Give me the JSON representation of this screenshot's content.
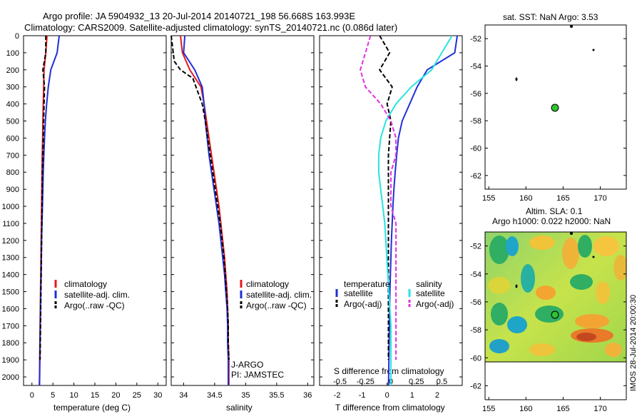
{
  "title": {
    "line1": "Argo profile: JA 5904932_13 20-Jul-2014 20140721_198 56.668S 163.993E",
    "line2": "Climatology: CARS2009. Satellite-adjusted climatology: synTS_20140721.nc (0.086d later)"
  },
  "panels": {
    "temperature": {
      "xlabel": "temperature (deg C)",
      "xticks": [
        "0",
        "5",
        "10",
        "15",
        "20",
        "25",
        "30"
      ],
      "legend": [
        "climatology",
        "satellite-adj. clim.",
        "Argo(..raw -QC)"
      ]
    },
    "salinity": {
      "xlabel": "salinity",
      "xticks": [
        "34",
        "34.5",
        "35",
        "35.5",
        "36"
      ],
      "legend": [
        "climatology",
        "satellite-adj. clim.",
        "Argo(..raw -QC)"
      ],
      "note1": "J-ARGO",
      "note2": "PI: JAMSTEC"
    },
    "difference": {
      "xlabel": "T difference from climatology",
      "s_label": "S difference from climatology",
      "xticks": [
        "-2",
        "-1",
        "0",
        "1",
        "2"
      ],
      "sticks": [
        "-0.5",
        "-0.25",
        "0",
        "0.25",
        "0.5"
      ],
      "leg_t_head": "temperature",
      "leg_s_head": "salinity",
      "leg_t": [
        "satellite",
        "Argo(-adj)"
      ],
      "leg_s": [
        "satellite",
        "Argo(-adj)"
      ]
    }
  },
  "depth_ticks": [
    "0",
    "100",
    "200",
    "300",
    "400",
    "500",
    "600",
    "700",
    "800",
    "900",
    "1000",
    "1100",
    "1200",
    "1300",
    "1400",
    "1500",
    "1600",
    "1700",
    "1800",
    "1900",
    "2000"
  ],
  "map1": {
    "title": "sat. SST: NaN Argo: 3.53",
    "yticks": [
      "-52",
      "-54",
      "-56",
      "-58",
      "-60",
      "-62"
    ],
    "xticks": [
      "155",
      "160",
      "165",
      "170"
    ]
  },
  "map2": {
    "title1": "Altim. SLA: 0.1",
    "title2": "Argo h1000: 0.022 h2000: NaN",
    "yticks": [
      "-52",
      "-54",
      "-56",
      "-58",
      "-60",
      "-62"
    ],
    "xticks": [
      "155",
      "160",
      "165",
      "170"
    ],
    "stamp": "IMOS 28-Jul-2014 20:00:30"
  },
  "colors": {
    "climatology": "#e41a1c",
    "satellite": "#1f2fd6",
    "argo": "#000000",
    "sat_salinity": "#27e3e3",
    "argo_salinity_diff": "#e12fe1",
    "float_marker": "#2ec42e"
  },
  "chart_data": [
    {
      "type": "line",
      "panel": "temperature",
      "xlabel": "temperature (deg C)",
      "ylabel": "",
      "xlim": [
        -2,
        32
      ],
      "ylim": [
        2050,
        0
      ],
      "series": [
        {
          "name": "climatology",
          "x": [
            3.6,
            3.3,
            2.9,
            2.8,
            2.7,
            2.6,
            2.55,
            2.45,
            2.4,
            2.35,
            2.3,
            2.25,
            2.2,
            2.15,
            2.1,
            2.05,
            2.0,
            1.95,
            1.9,
            1.85,
            1.8,
            1.75
          ],
          "y": [
            0,
            100,
            200,
            300,
            400,
            500,
            600,
            700,
            800,
            900,
            1000,
            1100,
            1200,
            1300,
            1400,
            1500,
            1600,
            1700,
            1800,
            1900,
            2000,
            2050
          ]
        },
        {
          "name": "satellite-adj. clim.",
          "x": [
            6.5,
            6.0,
            4.5,
            3.9,
            3.5,
            3.2,
            3.0,
            2.85,
            2.7,
            2.6,
            2.5,
            2.4,
            2.3,
            2.25,
            2.2,
            2.1,
            2.05,
            2.0,
            1.95,
            1.9,
            1.85,
            1.8
          ],
          "y": [
            0,
            100,
            200,
            300,
            400,
            500,
            600,
            700,
            800,
            900,
            1000,
            1100,
            1200,
            1300,
            1400,
            1500,
            1600,
            1700,
            1800,
            1900,
            2000,
            2050
          ]
        },
        {
          "name": "Argo(..raw -QC)",
          "x": [
            3.3,
            3.3,
            2.6,
            3.0,
            2.9,
            2.8,
            2.7,
            2.6,
            2.5,
            2.45,
            2.4,
            2.35,
            2.3,
            2.25,
            2.2,
            2.15,
            2.1,
            2.05,
            2.0,
            1.95
          ],
          "y": [
            0,
            100,
            200,
            300,
            400,
            500,
            600,
            700,
            800,
            900,
            1000,
            1100,
            1200,
            1300,
            1400,
            1500,
            1600,
            1700,
            1800,
            1900
          ]
        }
      ]
    },
    {
      "type": "line",
      "panel": "salinity",
      "xlabel": "salinity",
      "ylabel": "",
      "xlim": [
        33.8,
        36.1
      ],
      "ylim": [
        2050,
        0
      ],
      "series": [
        {
          "name": "climatology",
          "x": [
            33.95,
            33.98,
            34.1,
            34.28,
            34.33,
            34.37,
            34.41,
            34.45,
            34.49,
            34.53,
            34.57,
            34.6,
            34.63,
            34.66,
            34.68,
            34.7,
            34.71,
            34.72,
            34.72,
            34.73,
            34.73,
            34.73
          ],
          "y": [
            0,
            100,
            200,
            300,
            400,
            500,
            600,
            700,
            800,
            900,
            1000,
            1100,
            1200,
            1300,
            1400,
            1500,
            1600,
            1700,
            1800,
            1900,
            2000,
            2050
          ]
        },
        {
          "name": "satellite-adj. clim.",
          "x": [
            34.02,
            34.0,
            34.18,
            34.3,
            34.33,
            34.35,
            34.38,
            34.41,
            34.45,
            34.49,
            34.53,
            34.57,
            34.6,
            34.63,
            34.66,
            34.68,
            34.7,
            34.71,
            34.71,
            34.72,
            34.72,
            34.72
          ],
          "y": [
            0,
            100,
            200,
            300,
            400,
            500,
            600,
            700,
            800,
            900,
            1000,
            1100,
            1200,
            1300,
            1400,
            1500,
            1600,
            1700,
            1800,
            1900,
            2000,
            2050
          ]
        },
        {
          "name": "Argo(..raw -QC)",
          "x": [
            33.8,
            33.85,
            33.95,
            34.15,
            34.3,
            34.35,
            34.39,
            34.43,
            34.47,
            34.51,
            34.55,
            34.59,
            34.62,
            34.65,
            34.67,
            34.69,
            34.71,
            34.72,
            34.72,
            34.73
          ],
          "y": [
            0,
            150,
            200,
            250,
            400,
            500,
            600,
            700,
            800,
            900,
            1000,
            1100,
            1200,
            1300,
            1400,
            1500,
            1600,
            1700,
            1800,
            1900
          ]
        }
      ]
    },
    {
      "type": "line",
      "panel": "difference",
      "xlabel": "T difference from climatology",
      "ylabel": "",
      "xlim": [
        -2.7,
        3.0
      ],
      "ylim": [
        2050,
        0
      ],
      "series": [
        {
          "name": "satellite",
          "x": [
            2.8,
            2.7,
            1.6,
            1.2,
            0.9,
            0.6,
            0.45,
            0.38,
            0.32,
            0.27,
            0.23,
            0.2,
            0.17,
            0.15,
            0.13,
            0.11,
            0.1,
            0.09,
            0.08,
            0.07,
            0.06,
            0.05
          ],
          "y": [
            0,
            100,
            200,
            300,
            400,
            500,
            600,
            700,
            800,
            900,
            1000,
            1100,
            1200,
            1300,
            1400,
            1500,
            1600,
            1700,
            1800,
            1900,
            2000,
            2050
          ]
        },
        {
          "name": "Argo(-adj)",
          "x": [
            -0.3,
            0.1,
            -0.3,
            0.2,
            0.0,
            0.15,
            0.1,
            0.05,
            0.05,
            0.05,
            0.05,
            0.05,
            0.05,
            0.05,
            0.05,
            0.05,
            0.05,
            0.05,
            0.05,
            0.05
          ],
          "y": [
            0,
            100,
            200,
            300,
            400,
            500,
            600,
            700,
            800,
            900,
            1000,
            1100,
            1200,
            1300,
            1400,
            1500,
            1600,
            1700,
            1800,
            1900
          ]
        },
        {
          "name": "satellite",
          "x": [
            0.6,
            0.5,
            0.4,
            0.2,
            0.05,
            -0.05,
            -0.1,
            -0.12,
            -0.12,
            -0.1,
            -0.08,
            -0.06,
            -0.05,
            -0.04,
            -0.03,
            -0.02,
            -0.01,
            0.0,
            0.0,
            0.0,
            0.0,
            0.0
          ],
          "y": [
            0,
            100,
            200,
            300,
            400,
            500,
            600,
            700,
            800,
            900,
            1000,
            1100,
            1200,
            1300,
            1400,
            1500,
            1600,
            1700,
            1800,
            1900,
            2000,
            2050
          ]
        },
        {
          "name": "Argo(-adj)",
          "x": [
            -0.2,
            -0.25,
            -0.3,
            -0.25,
            -0.1,
            0.0,
            0.05,
            0.05,
            0.0,
            0.0,
            0.0,
            0.05,
            0.05,
            0.05,
            0.05,
            0.05,
            0.05,
            0.05,
            0.05,
            0.05
          ],
          "y": [
            0,
            100,
            200,
            300,
            400,
            500,
            600,
            700,
            800,
            900,
            1000,
            1100,
            1200,
            1300,
            1400,
            1500,
            1600,
            1700,
            1800,
            1900
          ]
        }
      ]
    }
  ]
}
